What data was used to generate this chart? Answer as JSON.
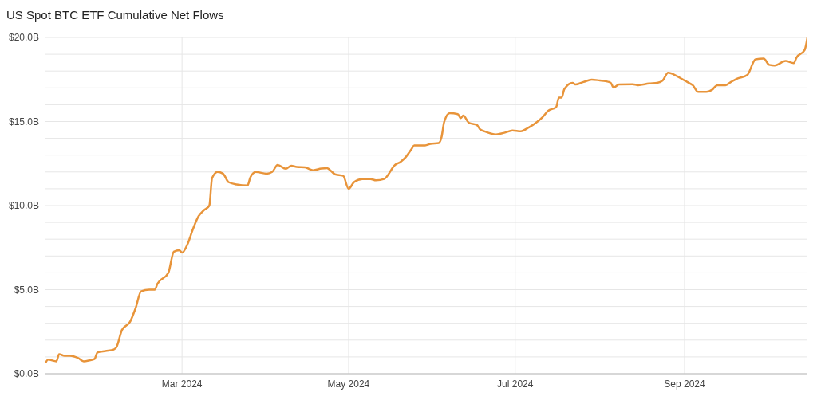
{
  "chart_data": {
    "type": "line",
    "title": "US Spot BTC ETF Cumulative Net Flows",
    "x": [
      "2024-01-11",
      "2024-01-12",
      "2024-01-15",
      "2024-01-16",
      "2024-01-18",
      "2024-01-20",
      "2024-01-23",
      "2024-01-25",
      "2024-01-27",
      "2024-01-29",
      "2024-01-30",
      "2024-02-02",
      "2024-02-05",
      "2024-02-06",
      "2024-02-08",
      "2024-02-11",
      "2024-02-13",
      "2024-02-15",
      "2024-02-18",
      "2024-02-20",
      "2024-02-21",
      "2024-02-25",
      "2024-02-27",
      "2024-02-29",
      "2024-03-01",
      "2024-03-03",
      "2024-03-05",
      "2024-03-07",
      "2024-03-09",
      "2024-03-11",
      "2024-03-12",
      "2024-03-14",
      "2024-03-16",
      "2024-03-18",
      "2024-03-21",
      "2024-03-25",
      "2024-03-26",
      "2024-03-28",
      "2024-04-01",
      "2024-04-03",
      "2024-04-05",
      "2024-04-08",
      "2024-04-10",
      "2024-04-12",
      "2024-04-15",
      "2024-04-18",
      "2024-04-21",
      "2024-04-23",
      "2024-04-26",
      "2024-04-29",
      "2024-05-01",
      "2024-05-03",
      "2024-05-06",
      "2024-05-09",
      "2024-05-11",
      "2024-05-14",
      "2024-05-18",
      "2024-05-20",
      "2024-05-22",
      "2024-05-24",
      "2024-05-25",
      "2024-05-29",
      "2024-05-31",
      "2024-06-03",
      "2024-06-04",
      "2024-06-05",
      "2024-06-07",
      "2024-06-10",
      "2024-06-11",
      "2024-06-12",
      "2024-06-14",
      "2024-06-17",
      "2024-06-18",
      "2024-06-20",
      "2024-06-24",
      "2024-06-27",
      "2024-06-30",
      "2024-07-03",
      "2024-07-06",
      "2024-07-09",
      "2024-07-11",
      "2024-07-13",
      "2024-07-16",
      "2024-07-17",
      "2024-07-18",
      "2024-07-19",
      "2024-07-22",
      "2024-07-23",
      "2024-07-26",
      "2024-07-29",
      "2024-08-01",
      "2024-08-03",
      "2024-08-05",
      "2024-08-06",
      "2024-08-08",
      "2024-08-13",
      "2024-08-15",
      "2024-08-19",
      "2024-08-22",
      "2024-08-24",
      "2024-08-26",
      "2024-08-29",
      "2024-08-31",
      "2024-09-02",
      "2024-09-04",
      "2024-09-06",
      "2024-09-09",
      "2024-09-11",
      "2024-09-13",
      "2024-09-16",
      "2024-09-18",
      "2024-09-20",
      "2024-09-24",
      "2024-09-27",
      "2024-09-30",
      "2024-10-02",
      "2024-10-04",
      "2024-10-08",
      "2024-10-11",
      "2024-10-12",
      "2024-10-15",
      "2024-10-16"
    ],
    "series": [
      {
        "color": "#e8943a",
        "values": [
          0.65,
          0.84,
          0.74,
          1.16,
          1.07,
          1.07,
          0.93,
          0.74,
          0.79,
          0.88,
          1.26,
          1.35,
          1.44,
          1.58,
          2.6,
          3.1,
          3.9,
          4.9,
          5.0,
          5.0,
          5.35,
          6.0,
          7.26,
          7.35,
          7.2,
          7.7,
          8.6,
          9.35,
          9.72,
          10.0,
          11.63,
          12.0,
          11.9,
          11.4,
          11.26,
          11.2,
          11.67,
          12.0,
          11.9,
          12.0,
          12.42,
          12.19,
          12.37,
          12.3,
          12.28,
          12.1,
          12.2,
          12.23,
          11.86,
          11.77,
          11.0,
          11.4,
          11.58,
          11.58,
          11.5,
          11.58,
          12.42,
          12.6,
          12.9,
          13.35,
          13.58,
          13.58,
          13.67,
          13.72,
          14.05,
          14.98,
          15.5,
          15.44,
          15.2,
          15.35,
          14.93,
          14.79,
          14.56,
          14.4,
          14.23,
          14.33,
          14.47,
          14.42,
          14.65,
          14.98,
          15.26,
          15.63,
          15.86,
          16.42,
          16.42,
          16.93,
          17.3,
          17.2,
          17.35,
          17.49,
          17.44,
          17.4,
          17.3,
          17.02,
          17.2,
          17.22,
          17.16,
          17.26,
          17.3,
          17.44,
          17.9,
          17.72,
          17.53,
          17.35,
          17.16,
          16.76,
          16.76,
          16.88,
          17.16,
          17.16,
          17.35,
          17.53,
          17.77,
          18.7,
          18.74,
          18.37,
          18.33,
          18.6,
          18.47,
          18.8,
          19.26,
          20.0
        ]
      }
    ],
    "xlim": [
      "2024-01-11",
      "2024-10-16"
    ],
    "xticks": [
      {
        "value": "2024-03-01",
        "label": "Mar 2024"
      },
      {
        "value": "2024-05-01",
        "label": "May 2024"
      },
      {
        "value": "2024-07-01",
        "label": "Jul 2024"
      },
      {
        "value": "2024-09-01",
        "label": "Sep 2024"
      }
    ],
    "ylim": [
      0,
      20
    ],
    "yticks": [
      {
        "value": 0,
        "label": "$0.0B"
      },
      {
        "value": 1,
        "label": null
      },
      {
        "value": 2,
        "label": null
      },
      {
        "value": 3,
        "label": null
      },
      {
        "value": 4,
        "label": null
      },
      {
        "value": 5,
        "label": "$5.0B"
      },
      {
        "value": 6,
        "label": null
      },
      {
        "value": 7,
        "label": null
      },
      {
        "value": 8,
        "label": null
      },
      {
        "value": 9,
        "label": null
      },
      {
        "value": 10,
        "label": "$10.0B"
      },
      {
        "value": 11,
        "label": null
      },
      {
        "value": 12,
        "label": null
      },
      {
        "value": 13,
        "label": null
      },
      {
        "value": 14,
        "label": null
      },
      {
        "value": 15,
        "label": "$15.0B"
      },
      {
        "value": 16,
        "label": null
      },
      {
        "value": 17,
        "label": null
      },
      {
        "value": 18,
        "label": null
      },
      {
        "value": 19,
        "label": null
      },
      {
        "value": 20,
        "label": "$20.0B"
      }
    ],
    "grid": true,
    "marker": "none",
    "line_style": "solid"
  }
}
